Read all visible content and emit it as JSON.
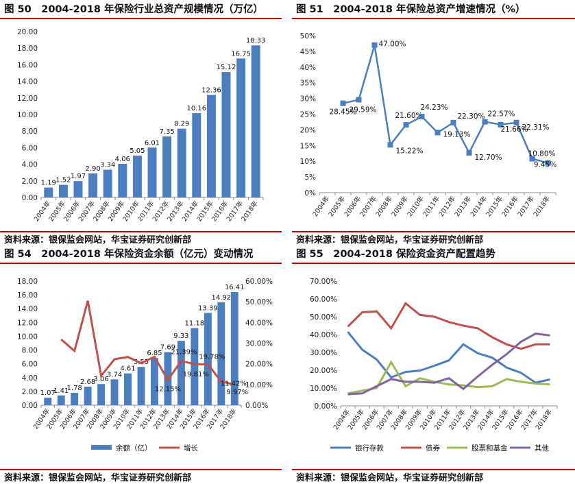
{
  "figures": {
    "fig50": {
      "title": "图 50　2004-2018 年保险行业总资产规模情况（万亿）",
      "source": "资料来源：银保监会网站，华宝证券研究创新部"
    },
    "fig51": {
      "title": "图 51　2004-2018 年保险总资产增速情况（%）",
      "source": "资料来源：银保监会网站，华宝证券研究创新部"
    },
    "fig54": {
      "title": "图 54　2004-2018 年保险资金余额（亿元）变动情况",
      "source": "资料来源：银保监会网站，华宝证券研究创新部"
    },
    "fig55": {
      "title": "图 55　2004-2018 保险资金资产配置趋势",
      "source": "资料来源：银保监会网站，华宝证券研究创新部"
    }
  },
  "chart_data": [
    {
      "type": "bar",
      "categories": [
        "2004年",
        "2005年",
        "2006年",
        "2007年",
        "2008年",
        "2009年",
        "2010年",
        "2011年",
        "2012年",
        "2013年",
        "2014年",
        "2015年",
        "2016年",
        "2017年",
        "2018年"
      ],
      "values": [
        1.19,
        1.52,
        1.97,
        2.9,
        3.34,
        4.06,
        5.05,
        6.01,
        7.35,
        8.29,
        10.16,
        12.36,
        15.12,
        16.75,
        18.33
      ],
      "value_labels": [
        "1.19",
        "1.52",
        "1.97",
        "2.90",
        "3.34",
        "4.06",
        "5.05",
        "6.01",
        "7.35",
        "8.29",
        "10.16",
        "12.36",
        "15.12",
        "16.75",
        "18.33"
      ],
      "ylim": [
        0,
        20
      ],
      "yticks": [
        "0.00",
        "2.00",
        "4.00",
        "6.00",
        "8.00",
        "10.00",
        "12.00",
        "14.00",
        "16.00",
        "18.00",
        "20.00"
      ],
      "colors": {
        "bar": "#4a7ebf"
      }
    },
    {
      "type": "line",
      "categories": [
        "2004年",
        "2005年",
        "2006年",
        "2007年",
        "2008年",
        "2009年",
        "2010年",
        "2011年",
        "2012年",
        "2013年",
        "2014年",
        "2015年",
        "2016年",
        "2017年",
        "2018年"
      ],
      "values": [
        null,
        28.45,
        29.59,
        47.0,
        15.22,
        21.6,
        24.23,
        19.13,
        22.3,
        12.7,
        22.57,
        21.66,
        22.31,
        10.8,
        9.45
      ],
      "value_labels": [
        "",
        "28.45%",
        "29.59%",
        "47.00%",
        "15.22%",
        "21.60%",
        "24.23%",
        "19.13%",
        "22.30%",
        "12.70%",
        "22.57%",
        "21.66%",
        "22.31%",
        "10.80%",
        "9.45%"
      ],
      "ylim": [
        0,
        50
      ],
      "yticks": [
        "0%",
        "5%",
        "10%",
        "15%",
        "20%",
        "25%",
        "30%",
        "35%",
        "40%",
        "45%",
        "50%"
      ],
      "colors": {
        "line": "#4a7ebf"
      }
    },
    {
      "type": "bar",
      "categories": [
        "2004年",
        "2005年",
        "2006年",
        "2007年",
        "2008年",
        "2009年",
        "2010年",
        "2011年",
        "2012年",
        "2013年",
        "2014年",
        "2015年",
        "2016年",
        "2017年",
        "2018年"
      ],
      "series": [
        {
          "name": "余额（亿）",
          "type": "bar",
          "axis": "left",
          "values": [
            1.07,
            1.41,
            1.78,
            2.68,
            3.06,
            3.74,
            4.61,
            5.55,
            6.85,
            7.69,
            9.33,
            11.18,
            13.39,
            14.92,
            16.41
          ],
          "value_labels": [
            "1.07",
            "1.41",
            "1.78",
            "2.68",
            "3.06",
            "3.74",
            "4.61",
            "5.55",
            "6.85",
            "7.69",
            "9.33",
            "11.18",
            "13.39",
            "14.92",
            "16.41"
          ]
        },
        {
          "name": "增长",
          "type": "line",
          "axis": "right",
          "values": [
            null,
            31.8,
            26.2,
            50.5,
            14.2,
            22.2,
            23.3,
            20.3,
            23.4,
            12.15,
            21.39,
            19.81,
            19.78,
            11.42,
            9.97
          ],
          "value_labels": [
            "",
            "",
            "",
            "",
            "",
            "",
            "",
            "",
            "",
            "12.15%",
            "21.39%",
            "19.81%",
            "19.78%",
            "11.42%",
            "9.97%"
          ]
        }
      ],
      "ylim": [
        0,
        18
      ],
      "y2lim": [
        0,
        60
      ],
      "yticks": [
        "0.00",
        "2.00",
        "4.00",
        "6.00",
        "8.00",
        "10.00",
        "12.00",
        "14.00",
        "16.00",
        "18.00"
      ],
      "y2ticks": [
        "0.00%",
        "10.00%",
        "20.00%",
        "30.00%",
        "40.00%",
        "50.00%",
        "60.00%"
      ],
      "legend": "bottom",
      "colors": {
        "bar": "#4a7ebf",
        "line": "#c0504d"
      }
    },
    {
      "type": "line",
      "categories": [
        "2004年",
        "2005年",
        "2006年",
        "2007年",
        "2008年",
        "2009年",
        "2010年",
        "2011年",
        "2012年",
        "2013年",
        "2014年",
        "2015年",
        "2016年",
        "2017年",
        "2018年"
      ],
      "series": [
        {
          "name": "银行存款",
          "values": [
            41.5,
            31.5,
            26.0,
            16.0,
            19.0,
            19.8,
            22.5,
            25.5,
            34.5,
            29.5,
            27.0,
            21.5,
            18.5,
            13.0,
            14.8
          ]
        },
        {
          "name": "债券",
          "values": [
            44.5,
            52.5,
            53.0,
            43.5,
            57.5,
            51.0,
            50.0,
            47.0,
            45.0,
            43.5,
            38.5,
            34.5,
            32.0,
            34.5,
            34.5
          ]
        },
        {
          "name": "股票和基金",
          "values": [
            7.0,
            8.5,
            10.0,
            24.5,
            11.0,
            15.5,
            13.5,
            12.0,
            11.5,
            10.5,
            11.0,
            15.0,
            13.5,
            12.5,
            12.0
          ]
        },
        {
          "name": "其他",
          "values": [
            6.5,
            7.0,
            11.0,
            15.0,
            13.5,
            13.5,
            13.0,
            15.5,
            9.5,
            16.5,
            23.0,
            29.0,
            36.0,
            40.5,
            39.5
          ]
        }
      ],
      "ylim": [
        0,
        70
      ],
      "yticks": [
        "0.00%",
        "10.00%",
        "20.00%",
        "30.00%",
        "40.00%",
        "50.00%",
        "60.00%",
        "70.00%"
      ],
      "legend": "bottom",
      "colors": {
        "银行存款": "#4a7ebf",
        "债券": "#c0504d",
        "股票和基金": "#9bbb59",
        "其他": "#8064a2"
      }
    }
  ]
}
